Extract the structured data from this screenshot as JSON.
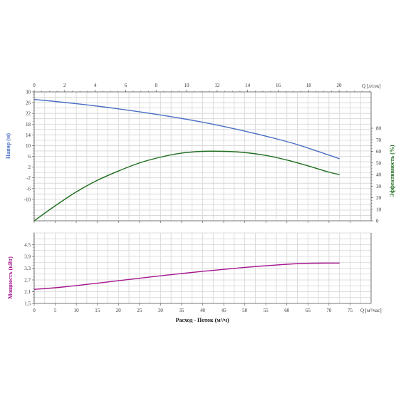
{
  "colors": {
    "head": "#4a6fc4",
    "efficiency": "#1f6e1f",
    "power": "#a5158f",
    "grid": "#d4d4d4",
    "axis": "#555555",
    "text": "#333333"
  },
  "chart_data": [
    {
      "type": "line",
      "panel": "head-efficiency",
      "grid": true,
      "x_top": {
        "label": "Q [л/сек]",
        "ticks": [
          0,
          2,
          4,
          6,
          8,
          10,
          12,
          14,
          16,
          18,
          20
        ],
        "range": [
          0,
          22.1
        ]
      },
      "x_flow_ticks": [
        0,
        5,
        10,
        15,
        20,
        25,
        30,
        35,
        40,
        45,
        50,
        55,
        60,
        65,
        70,
        75
      ],
      "y_left": {
        "label": "Напор (м)",
        "ticks": [
          30,
          26,
          22,
          18,
          14,
          10,
          6,
          2,
          -2,
          -6,
          -10
        ],
        "range": [
          -18,
          30
        ]
      },
      "y_right": {
        "label": "Эффективность (%)",
        "ticks": [
          80,
          70,
          60,
          50,
          40,
          30,
          20,
          10,
          0
        ],
        "range": [
          0,
          80
        ]
      },
      "series": [
        {
          "key": "head",
          "axis": "left",
          "x": [
            0,
            10,
            20,
            30,
            40,
            50,
            60,
            65,
            72.5
          ],
          "y": [
            27.2,
            25.6,
            23.7,
            21.4,
            18.7,
            15.4,
            11.5,
            9.1,
            5.1
          ]
        },
        {
          "key": "efficiency",
          "axis": "right",
          "x": [
            0,
            5,
            10,
            15,
            20,
            25,
            30,
            35,
            40,
            45,
            50,
            55,
            60,
            65,
            70,
            72.5
          ],
          "y": [
            0,
            13,
            25,
            35,
            43,
            50,
            55,
            58.5,
            60,
            60,
            59,
            56.5,
            52.5,
            47.5,
            42,
            40
          ]
        }
      ]
    },
    {
      "type": "line",
      "panel": "power",
      "grid": true,
      "x": {
        "label": "Q [м³/час]",
        "ticks": [
          0,
          5,
          10,
          15,
          20,
          25,
          30,
          35,
          40,
          45,
          50,
          55,
          60,
          65,
          70,
          75
        ],
        "range": [
          0,
          80
        ]
      },
      "x_title": "Расход - Поток (м³/ч)",
      "y_left": {
        "label": "Мощность (кВт)",
        "ticks": [
          4.5,
          3.9,
          3.3,
          2.7,
          2.1,
          1.5
        ],
        "range": [
          1.5,
          5.1
        ]
      },
      "series": [
        {
          "key": "power",
          "axis": "left",
          "x": [
            0,
            5,
            10,
            20,
            30,
            40,
            50,
            60,
            65,
            70,
            72.5
          ],
          "y": [
            2.22,
            2.3,
            2.41,
            2.66,
            2.91,
            3.14,
            3.34,
            3.5,
            3.55,
            3.56,
            3.56
          ]
        }
      ]
    }
  ]
}
